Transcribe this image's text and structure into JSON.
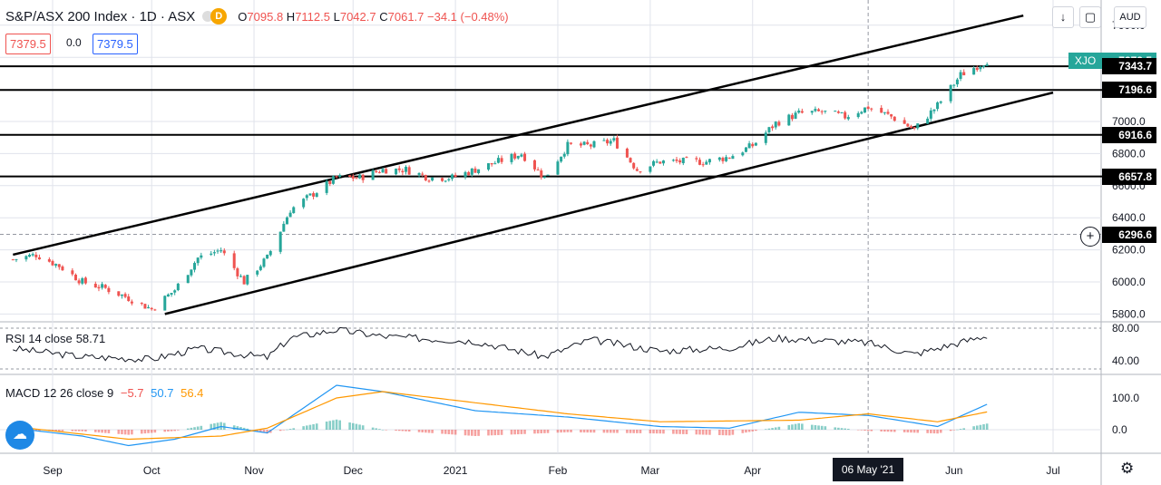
{
  "header": {
    "symbol": "S&P/ASX 200 Index · 1D · ASX",
    "badge": "D",
    "open_label": "O",
    "open": "7095.8",
    "high_label": "H",
    "high": "7112.5",
    "low_label": "L",
    "low": "7042.7",
    "close_label": "C",
    "close": "7061.7",
    "change": "−34.1 (−0.48%)",
    "bid": "7379.5",
    "spread": "0.0",
    "ask": "7379.5"
  },
  "toolbar": {
    "down_icon": "arrow-down-icon",
    "fullscreen_icon": "fullscreen-icon",
    "currency": "AUD"
  },
  "price_axis": {
    "ticks": [
      7600,
      7400,
      7200,
      7000,
      6800,
      6600,
      6400,
      6200,
      6000,
      5800
    ],
    "tick_labels": [
      "7600.0",
      "7400.0",
      "7200.0",
      "7000.0",
      "6800.0",
      "6600.0",
      "6400.0",
      "6200.0",
      "6000.0",
      "5800.0"
    ],
    "symbol_tag": "XJO",
    "tags": [
      {
        "value": 7379.5,
        "label": "7379.5"
      },
      {
        "value": 7343.7,
        "label": "7343.7"
      },
      {
        "value": 7196.6,
        "label": "7196.6"
      },
      {
        "value": 6916.6,
        "label": "6916.6"
      },
      {
        "value": 6657.8,
        "label": "6657.8"
      },
      {
        "value": 6296.6,
        "label": "6296.6"
      }
    ],
    "colors": {
      "up": "#26a69a",
      "down": "#ef5350",
      "last": "#26a69a"
    }
  },
  "time_axis": {
    "labels": [
      "Sep",
      "Oct",
      "Nov",
      "Dec",
      "2021",
      "Feb",
      "Mar",
      "Apr",
      "06 May '21",
      "Jun",
      "Jul"
    ],
    "crosshair_label": "06 May '21"
  },
  "rsi": {
    "title": "RSI 14 close",
    "value": "58.71",
    "tick_labels": [
      "80.00",
      "40.00"
    ],
    "ticks": [
      80,
      40
    ]
  },
  "macd": {
    "title": "MACD 12 26 close 9",
    "hist": "−5.7",
    "macd": "50.7",
    "signal": "56.4",
    "tick_labels": [
      "100.0",
      "0.0"
    ],
    "ticks": [
      100,
      0
    ],
    "colors": {
      "hist": "#ef5350",
      "macd": "#2196f3",
      "signal": "#ff9800"
    }
  },
  "chart_data": {
    "type": "candlestick",
    "title": "S&P/ASX 200 Index · 1D · ASX",
    "x_start": "2020-08-20",
    "x_end": "2021-06-11",
    "y_range": [
      5720,
      7700
    ],
    "horizontal_levels": [
      7343.7,
      7196.6,
      6916.6,
      6657.8
    ],
    "crosshair": {
      "date": "2021-05-06",
      "price": 6296.6
    },
    "channel": {
      "upper": [
        [
          "2020-08-20",
          6170
        ],
        [
          "2021-06-22",
          7660
        ]
      ],
      "lower": [
        [
          "2020-10-05",
          5800
        ],
        [
          "2021-07-01",
          7180
        ]
      ]
    },
    "close_series": [
      [
        "2020-08-20",
        6140
      ],
      [
        "2020-08-27",
        6170
      ],
      [
        "2020-09-03",
        6100
      ],
      [
        "2020-09-10",
        6000
      ],
      [
        "2020-09-17",
        5960
      ],
      [
        "2020-09-24",
        5900
      ],
      [
        "2020-10-01",
        5830
      ],
      [
        "2020-10-08",
        5950
      ],
      [
        "2020-10-15",
        6150
      ],
      [
        "2020-10-22",
        6200
      ],
      [
        "2020-10-29",
        6000
      ],
      [
        "2020-11-05",
        6150
      ],
      [
        "2020-11-12",
        6450
      ],
      [
        "2020-11-19",
        6550
      ],
      [
        "2020-11-26",
        6650
      ],
      [
        "2020-12-03",
        6650
      ],
      [
        "2020-12-10",
        6700
      ],
      [
        "2020-12-17",
        6700
      ],
      [
        "2020-12-24",
        6650
      ],
      [
        "2020-12-31",
        6650
      ],
      [
        "2021-01-07",
        6700
      ],
      [
        "2021-01-14",
        6750
      ],
      [
        "2021-01-21",
        6800
      ],
      [
        "2021-01-28",
        6650
      ],
      [
        "2021-02-04",
        6850
      ],
      [
        "2021-02-11",
        6850
      ],
      [
        "2021-02-18",
        6880
      ],
      [
        "2021-02-25",
        6700
      ],
      [
        "2021-03-04",
        6750
      ],
      [
        "2021-03-11",
        6750
      ],
      [
        "2021-03-18",
        6750
      ],
      [
        "2021-03-25",
        6780
      ],
      [
        "2021-04-01",
        6850
      ],
      [
        "2021-04-08",
        6990
      ],
      [
        "2021-04-15",
        7050
      ],
      [
        "2021-04-22",
        7060
      ],
      [
        "2021-04-29",
        7030
      ],
      [
        "2021-05-06",
        7090
      ],
      [
        "2021-05-13",
        7030
      ],
      [
        "2021-05-20",
        6950
      ],
      [
        "2021-05-27",
        7100
      ],
      [
        "2021-06-03",
        7290
      ],
      [
        "2021-06-11",
        7380
      ]
    ],
    "rsi_series": [
      [
        "2020-08-20",
        55
      ],
      [
        "2020-09-10",
        45
      ],
      [
        "2020-10-01",
        42
      ],
      [
        "2020-10-15",
        55
      ],
      [
        "2020-11-05",
        44
      ],
      [
        "2020-11-12",
        68
      ],
      [
        "2020-11-26",
        78
      ],
      [
        "2020-12-10",
        70
      ],
      [
        "2021-01-07",
        64
      ],
      [
        "2021-01-28",
        45
      ],
      [
        "2021-02-11",
        66
      ],
      [
        "2021-03-04",
        52
      ],
      [
        "2021-03-25",
        56
      ],
      [
        "2021-04-08",
        68
      ],
      [
        "2021-05-06",
        62
      ],
      [
        "2021-05-20",
        48
      ],
      [
        "2021-06-11",
        71
      ]
    ],
    "macd_series": [
      [
        "2020-08-20",
        5
      ],
      [
        "2020-09-10",
        -20
      ],
      [
        "2020-09-24",
        -50
      ],
      [
        "2020-10-08",
        -30
      ],
      [
        "2020-10-22",
        10
      ],
      [
        "2020-11-05",
        -10
      ],
      [
        "2020-11-19",
        90
      ],
      [
        "2020-11-26",
        140
      ],
      [
        "2020-12-10",
        120
      ],
      [
        "2021-01-07",
        60
      ],
      [
        "2021-02-04",
        40
      ],
      [
        "2021-03-04",
        10
      ],
      [
        "2021-03-25",
        5
      ],
      [
        "2021-04-15",
        55
      ],
      [
        "2021-05-06",
        45
      ],
      [
        "2021-05-27",
        10
      ],
      [
        "2021-06-11",
        80
      ]
    ],
    "signal_series": [
      [
        "2020-08-20",
        10
      ],
      [
        "2020-09-24",
        -30
      ],
      [
        "2020-10-22",
        -20
      ],
      [
        "2020-11-05",
        5
      ],
      [
        "2020-11-26",
        100
      ],
      [
        "2020-12-10",
        120
      ],
      [
        "2021-01-07",
        85
      ],
      [
        "2021-02-04",
        50
      ],
      [
        "2021-03-04",
        25
      ],
      [
        "2021-04-15",
        30
      ],
      [
        "2021-05-06",
        50
      ],
      [
        "2021-05-27",
        25
      ],
      [
        "2021-06-11",
        56
      ]
    ]
  }
}
